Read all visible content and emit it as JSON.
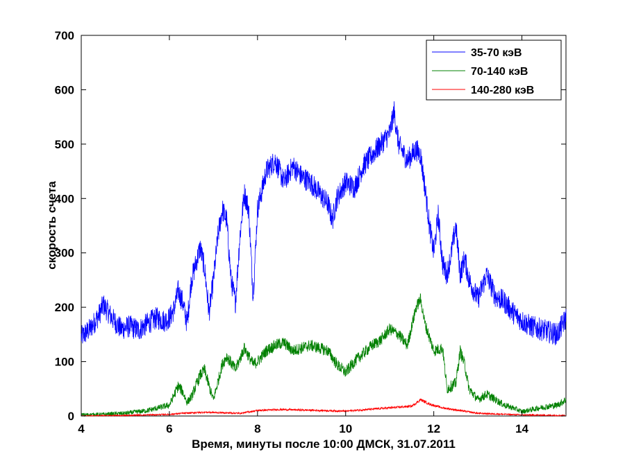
{
  "chart_data": {
    "type": "line",
    "title": "",
    "xlabel": "Время, минуты после 10:00 ДМСК, 31.07.2011",
    "ylabel": "скорость счета",
    "xlim": [
      4,
      15
    ],
    "ylim": [
      0,
      700
    ],
    "xticks": [
      4,
      6,
      8,
      10,
      12,
      14
    ],
    "yticks": [
      0,
      100,
      200,
      300,
      400,
      500,
      600,
      700
    ],
    "grid": false,
    "legend_position": "top-right",
    "series": [
      {
        "name": "35-70 кэВ",
        "color": "#0000ff",
        "x": [
          4.0,
          4.2,
          4.4,
          4.5,
          4.7,
          4.9,
          5.1,
          5.3,
          5.5,
          5.7,
          5.9,
          6.0,
          6.1,
          6.2,
          6.3,
          6.4,
          6.5,
          6.6,
          6.7,
          6.8,
          6.9,
          7.0,
          7.1,
          7.2,
          7.3,
          7.4,
          7.5,
          7.6,
          7.7,
          7.8,
          7.9,
          8.0,
          8.2,
          8.4,
          8.6,
          8.8,
          9.0,
          9.2,
          9.4,
          9.6,
          9.7,
          9.8,
          10.0,
          10.2,
          10.4,
          10.6,
          10.8,
          11.0,
          11.1,
          11.2,
          11.4,
          11.6,
          11.7,
          11.8,
          11.9,
          12.0,
          12.1,
          12.2,
          12.3,
          12.4,
          12.5,
          12.6,
          12.7,
          12.8,
          13.0,
          13.2,
          13.4,
          13.6,
          13.8,
          14.0,
          14.2,
          14.4,
          14.6,
          14.8,
          15.0
        ],
        "y": [
          145,
          160,
          185,
          205,
          180,
          160,
          165,
          158,
          170,
          180,
          175,
          180,
          195,
          230,
          210,
          170,
          250,
          280,
          310,
          270,
          190,
          250,
          330,
          380,
          360,
          250,
          210,
          330,
          410,
          380,
          220,
          380,
          450,
          470,
          430,
          460,
          440,
          430,
          410,
          390,
          360,
          400,
          430,
          420,
          460,
          480,
          500,
          520,
          560,
          500,
          470,
          490,
          480,
          420,
          350,
          300,
          370,
          280,
          260,
          300,
          350,
          260,
          290,
          250,
          215,
          260,
          220,
          210,
          190,
          175,
          165,
          160,
          155,
          150,
          180
        ]
      },
      {
        "name": "70-140 кэВ",
        "color": "#008000",
        "x": [
          4.0,
          4.5,
          5.0,
          5.5,
          6.0,
          6.2,
          6.3,
          6.4,
          6.5,
          6.7,
          6.8,
          6.9,
          7.0,
          7.2,
          7.3,
          7.5,
          7.7,
          7.9,
          8.0,
          8.2,
          8.4,
          8.6,
          8.8,
          9.0,
          9.2,
          9.4,
          9.6,
          9.8,
          10.0,
          10.2,
          10.4,
          10.6,
          10.8,
          11.0,
          11.2,
          11.4,
          11.6,
          11.7,
          11.8,
          12.0,
          12.2,
          12.3,
          12.5,
          12.6,
          12.7,
          12.8,
          13.0,
          13.2,
          13.4,
          13.6,
          13.8,
          14.0,
          14.4,
          14.8,
          15.0
        ],
        "y": [
          2,
          3,
          5,
          10,
          20,
          55,
          45,
          25,
          35,
          75,
          85,
          55,
          30,
          95,
          110,
          85,
          125,
          95,
          100,
          120,
          130,
          135,
          120,
          125,
          130,
          125,
          120,
          95,
          80,
          100,
          115,
          130,
          140,
          160,
          150,
          130,
          200,
          215,
          170,
          120,
          125,
          50,
          60,
          120,
          95,
          50,
          30,
          40,
          30,
          20,
          15,
          8,
          15,
          20,
          30
        ]
      },
      {
        "name": "140-280 кэВ",
        "color": "#ff0000",
        "x": [
          4.0,
          5.0,
          6.0,
          6.3,
          6.8,
          7.2,
          7.6,
          8.0,
          8.5,
          9.0,
          9.5,
          10.0,
          10.5,
          11.0,
          11.5,
          11.7,
          11.9,
          12.2,
          12.6,
          13.0,
          14.0,
          15.0
        ],
        "y": [
          0,
          1,
          3,
          5,
          7,
          6,
          5,
          10,
          12,
          11,
          10,
          9,
          12,
          15,
          18,
          30,
          22,
          15,
          10,
          5,
          2,
          1
        ]
      }
    ]
  }
}
